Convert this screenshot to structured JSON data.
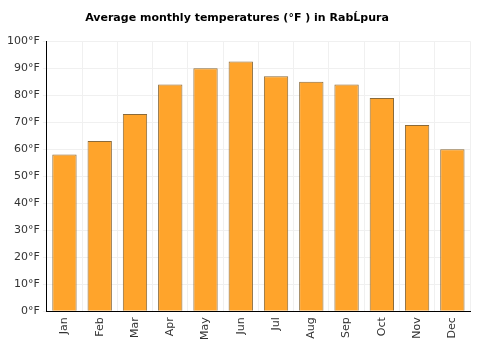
{
  "chart_data": {
    "type": "bar",
    "title": "Average monthly temperatures (°F ) in RabĹpura",
    "categories": [
      "Jan",
      "Feb",
      "Mar",
      "Apr",
      "May",
      "Jun",
      "Jul",
      "Aug",
      "Sep",
      "Oct",
      "Nov",
      "Dec"
    ],
    "values": [
      58,
      63,
      73,
      84,
      90,
      92.5,
      87,
      85,
      84,
      79,
      69,
      60
    ],
    "color": "#ffa42b",
    "ylim": [
      0,
      100
    ],
    "yticks": [
      {
        "value": 0,
        "label": "0°F"
      },
      {
        "value": 10,
        "label": "10°F"
      },
      {
        "value": 20,
        "label": "20°F"
      },
      {
        "value": 30,
        "label": "30°F"
      },
      {
        "value": 40,
        "label": "40°F"
      },
      {
        "value": 50,
        "label": "50°F"
      },
      {
        "value": 60,
        "label": "60°F"
      },
      {
        "value": 70,
        "label": "70°F"
      },
      {
        "value": 80,
        "label": "80°F"
      },
      {
        "value": 90,
        "label": "90°F"
      },
      {
        "value": 100,
        "label": "100°F"
      }
    ],
    "grid": true
  }
}
